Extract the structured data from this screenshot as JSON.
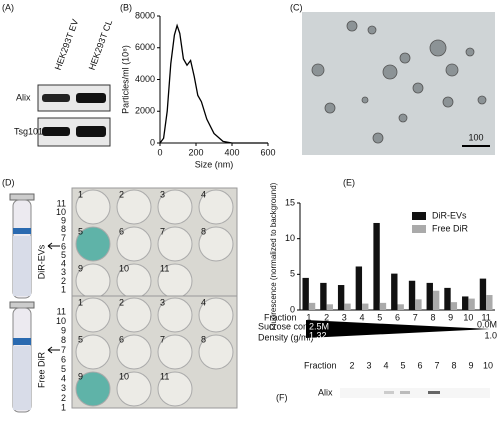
{
  "panels": {
    "a": {
      "label": "(A)",
      "columns": [
        "HEK293T EV",
        "HEK293T CL"
      ],
      "rows": [
        "Alix",
        "Tsg101"
      ]
    },
    "b": {
      "label": "(B)"
    },
    "c": {
      "label": "(C)",
      "scale": "100"
    },
    "d": {
      "label": "(D)",
      "tubes": [
        "DiR-EVs",
        "Free DiR"
      ],
      "tube_numbers": [
        "11",
        "10",
        "9",
        "8",
        "7",
        "6",
        "5",
        "4",
        "3",
        "2",
        "1"
      ],
      "well_numbers": [
        "1",
        "2",
        "3",
        "4",
        "5",
        "6",
        "7",
        "8",
        "9",
        "10",
        "11"
      ]
    },
    "e": {
      "label": "(E)",
      "fraction": "Fraction",
      "sucrose": "Sucrose conc.",
      "sucrose_high": "2.5M",
      "sucrose_low": "0.0M",
      "density": "Density (g/ml)",
      "density_high": "1.32",
      "density_low": "1.0"
    },
    "f": {
      "label": "(F)",
      "fraction": "Fraction",
      "fractions": [
        "2",
        "3",
        "4",
        "5",
        "6",
        "7",
        "8",
        "9",
        "10"
      ],
      "row": "Alix"
    }
  },
  "chart_data": [
    {
      "type": "line",
      "x_label": "Size (nm)",
      "y_label": "Particles/ml (10⁸)",
      "color": "#000000",
      "x": [
        0,
        20,
        40,
        60,
        80,
        95,
        110,
        130,
        150,
        170,
        190,
        210,
        230,
        260,
        300,
        350,
        400,
        450,
        500,
        600
      ],
      "values": [
        0,
        300,
        2000,
        5000,
        6800,
        7400,
        6900,
        5300,
        4900,
        5200,
        4200,
        3000,
        2600,
        1500,
        600,
        100,
        0,
        0,
        0,
        0
      ],
      "xlim": [
        0,
        600
      ],
      "xticks": [
        0,
        200,
        400,
        600
      ],
      "ylim": [
        0,
        8000
      ],
      "yticks": [
        0,
        2000,
        4000,
        6000,
        8000
      ]
    },
    {
      "type": "bar",
      "y_label": "Fluorescence (normalized to background)",
      "categories": [
        "1",
        "2",
        "3",
        "4",
        "5",
        "6",
        "7",
        "8",
        "9",
        "10",
        "11"
      ],
      "series": [
        {
          "name": "DiR-EVs",
          "color": "#111111",
          "values": [
            4.5,
            3.8,
            3.5,
            6.1,
            12.2,
            5.1,
            4.1,
            3.8,
            3.1,
            1.9,
            4.4
          ]
        },
        {
          "name": "Free DiR",
          "color": "#aaaaaa",
          "values": [
            1.0,
            0.8,
            0.9,
            0.9,
            1.0,
            0.8,
            1.5,
            2.7,
            1.1,
            1.6,
            2.1
          ]
        }
      ],
      "ylim": [
        0,
        15
      ],
      "yticks": [
        0,
        5,
        10,
        15
      ],
      "legend": "upper right"
    }
  ]
}
